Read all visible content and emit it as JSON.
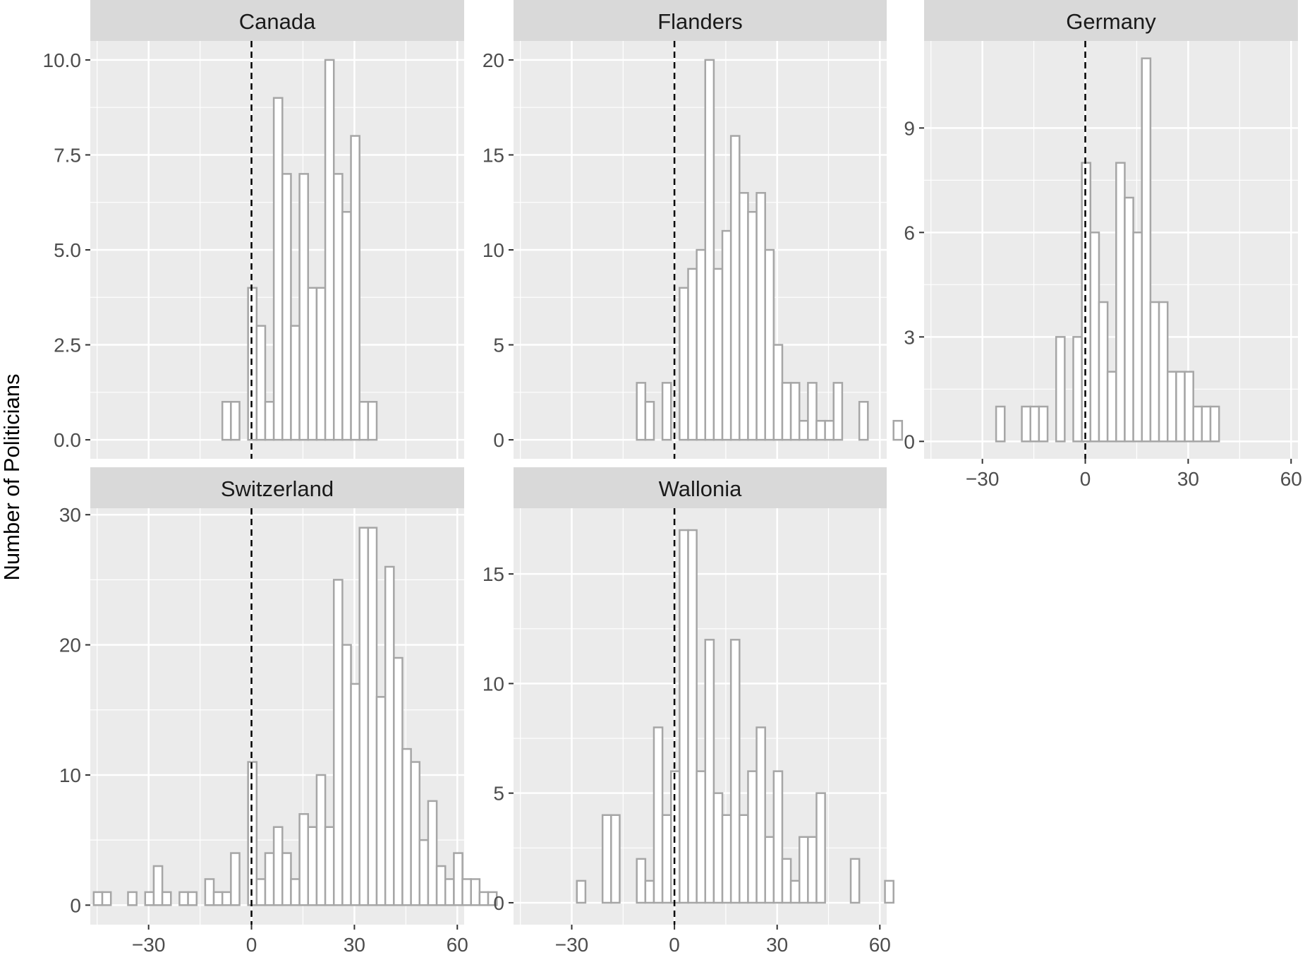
{
  "chart_data": {
    "type": "bar",
    "subtype": "faceted-histogram",
    "ylabel": "Number of Politicians",
    "xlabel": "",
    "x_ticks": [
      "−30",
      "0",
      "30",
      "60"
    ],
    "x_tick_values": [
      -30,
      0,
      30,
      60
    ],
    "xlim": [
      -47,
      62
    ],
    "bin_start": -46,
    "bin_width": 2.5,
    "reference_line": {
      "x": 0,
      "style": "dashed"
    },
    "grid": true,
    "colors": {
      "panel_bg": "#ebebeb",
      "grid": "#ffffff",
      "strip_bg": "#d9d9d9",
      "bar_stroke": "#a6a6a6",
      "bar_fill": "#ffffff",
      "ref_line": "#000000"
    },
    "facets": [
      {
        "name": "Canada",
        "ylim": [
          -0.5,
          10.5
        ],
        "y_ticks": [
          "0.0",
          "2.5",
          "5.0",
          "7.5",
          "10.0"
        ],
        "y_tick_values": [
          0,
          2.5,
          5,
          7.5,
          10
        ],
        "counts": [
          0,
          0,
          0,
          0,
          0,
          0,
          0,
          0,
          0,
          0,
          0,
          0,
          0,
          0,
          0,
          1,
          1,
          0,
          4,
          3,
          1,
          9,
          7,
          3,
          7,
          4,
          4,
          10,
          7,
          6,
          8,
          1,
          1,
          0,
          0,
          0,
          0,
          0,
          0,
          0,
          0
        ]
      },
      {
        "name": "Flanders",
        "ylim": [
          -1,
          21
        ],
        "y_ticks": [
          "0",
          "5",
          "10",
          "15",
          "20"
        ],
        "y_tick_values": [
          0,
          5,
          10,
          15,
          20
        ],
        "counts": [
          0,
          0,
          0,
          0,
          0,
          0,
          0,
          0,
          0,
          0,
          0,
          0,
          0,
          0,
          3,
          2,
          0,
          3,
          0,
          8,
          9,
          10,
          20,
          9,
          11,
          16,
          13,
          12,
          13,
          10,
          5,
          3,
          3,
          1,
          3,
          1,
          1,
          3,
          0,
          0,
          2,
          0,
          0,
          0,
          1
        ]
      },
      {
        "name": "Germany",
        "ylim": [
          -0.5,
          11.5
        ],
        "y_ticks": [
          "0",
          "3",
          "6",
          "9"
        ],
        "y_tick_values": [
          0,
          3,
          6,
          9
        ],
        "counts": [
          0,
          0,
          0,
          0,
          0,
          0,
          0,
          0,
          1,
          0,
          0,
          1,
          1,
          1,
          0,
          3,
          0,
          3,
          8,
          6,
          4,
          2,
          8,
          7,
          6,
          11,
          4,
          4,
          2,
          2,
          2,
          1,
          1,
          1,
          0,
          0,
          0,
          0,
          0,
          0,
          0,
          0
        ]
      },
      {
        "name": "Switzerland",
        "ylim": [
          -1.5,
          30.5
        ],
        "y_ticks": [
          "0",
          "10",
          "20",
          "30"
        ],
        "y_tick_values": [
          0,
          10,
          20,
          30
        ],
        "counts": [
          1,
          1,
          0,
          0,
          1,
          0,
          1,
          3,
          1,
          0,
          1,
          1,
          0,
          2,
          1,
          1,
          4,
          0,
          11,
          2,
          4,
          6,
          4,
          2,
          7,
          6,
          10,
          6,
          25,
          20,
          17,
          29,
          29,
          16,
          26,
          19,
          12,
          11,
          5,
          8,
          3,
          2,
          4,
          2,
          2,
          1,
          1,
          0,
          0
        ]
      },
      {
        "name": "Wallonia",
        "ylim": [
          -1,
          18
        ],
        "y_ticks": [
          "0",
          "5",
          "10",
          "15"
        ],
        "y_tick_values": [
          0,
          5,
          10,
          15
        ],
        "counts": [
          0,
          0,
          0,
          0,
          0,
          0,
          0,
          1,
          0,
          0,
          4,
          4,
          0,
          0,
          2,
          1,
          8,
          4,
          6,
          17,
          17,
          6,
          12,
          5,
          4,
          12,
          4,
          6,
          8,
          3,
          6,
          2,
          1,
          3,
          3,
          5,
          0,
          0,
          0,
          2,
          0,
          0,
          0,
          1
        ]
      }
    ]
  }
}
